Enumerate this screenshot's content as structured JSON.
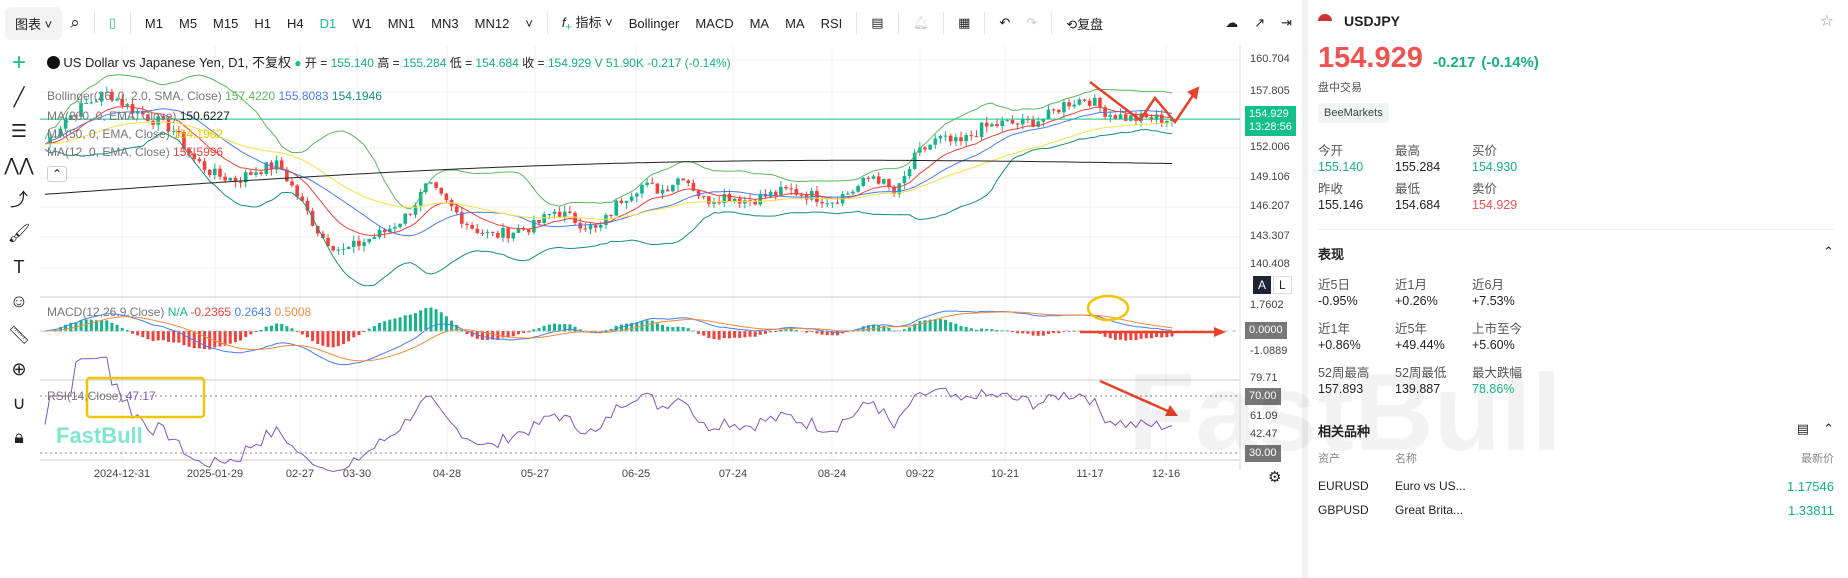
{
  "toolbar": {
    "chart_menu": "图表",
    "timeframes": [
      "M1",
      "M5",
      "M15",
      "H1",
      "H4",
      "D1",
      "W1",
      "MN1",
      "MN3",
      "MN12"
    ],
    "active_timeframe": "D1",
    "indicators_label": "指标",
    "indicator_shortcuts": [
      "Bollinger",
      "MACD",
      "MA",
      "MA",
      "RSI"
    ],
    "replay_label": "复盘"
  },
  "legend": {
    "symbol_title": "US Dollar vs Japanese Yen, D1, 不复权",
    "open_label": "开 =",
    "open": "155.140",
    "high_label": "高 =",
    "high": "155.284",
    "low_label": "低 =",
    "low": "154.684",
    "close_label": "收 =",
    "close": "154.929",
    "volume": "V 51.90K",
    "change": "-0.217 (-0.14%)",
    "bollinger": {
      "label": "Bollinger(26, 0, 2.0, SMA, Close)",
      "upper": "157.4220",
      "mid": "155.8083",
      "lower": "154.1946"
    },
    "ma200": {
      "label": "MA(200, 0, EMA, Close)",
      "value": "150.6227"
    },
    "ma50": {
      "label": "MA(50, 0, EMA, Close)",
      "value": "154.1962"
    },
    "ma12": {
      "label": "MA(12, 0, EMA, Close)",
      "value": "155.5996"
    },
    "macd": {
      "label": "MACD(12,26,9,Close)",
      "na": "N/A",
      "hist": "-0.2365",
      "macd": "0.2643",
      "signal": "0.5008"
    },
    "rsi": {
      "label": "RSI(14,Close)",
      "value": "47.17"
    }
  },
  "price_axis": {
    "labels": [
      "160.704",
      "157.805",
      "152.006",
      "149.106",
      "146.207",
      "143.307",
      "140.408"
    ],
    "current_price": "154.929",
    "countdown": "13:28:56",
    "macd_labels": [
      "1.7602",
      "-1.0889"
    ],
    "macd_zero": "0.0000",
    "rsi_labels": [
      "79.71",
      "61.09",
      "42.47"
    ],
    "rsi_70": "70.00",
    "rsi_30": "30.00",
    "scale_auto": "A",
    "scale_log": "L"
  },
  "colors": {
    "up": "#14b38a",
    "down": "#f0413c",
    "accent": "#14c08a",
    "bb_upper": "#5cb85c",
    "bb_lower": "#138f80",
    "ma12": "#f0413c",
    "ma50": "#f5e042",
    "ma200": "#222222",
    "macd": "#4a7cf5",
    "signal": "#f58a3a",
    "rsi": "#7e57c2",
    "annotation_red": "#e8422a",
    "annotation_yellow": "#f5c400"
  },
  "chart_data": {
    "type": "candlestick",
    "x_ticks": [
      "2024-12-31",
      "2025-01-29",
      "02-27",
      "03-30",
      "04-28",
      "05-27",
      "06-25",
      "07-24",
      "08-24",
      "09-22",
      "10-21",
      "11-17",
      "12-16"
    ],
    "closes": [
      152.5,
      155,
      156.5,
      157.5,
      156,
      155,
      154,
      151,
      149.5,
      149,
      150,
      150.5,
      147,
      143.5,
      142,
      143,
      144,
      145.5,
      148.5,
      146.5,
      144.5,
      143.5,
      144,
      144.5,
      146,
      145,
      144,
      147,
      148.5,
      148,
      149.5,
      147,
      147.5,
      147,
      147.5,
      148,
      147.5,
      147,
      148,
      149.5,
      147.5,
      151.5,
      153,
      152.5,
      154,
      154.5,
      154.5,
      155,
      156.5,
      157,
      155.5,
      155,
      155,
      154.929
    ],
    "ylim": [
      140.408,
      160.704
    ]
  },
  "quote": {
    "symbol": "USDJPY",
    "price": "154.929",
    "change": "-0.217",
    "change_pct": "(-0.14%)",
    "session": "盘中交易",
    "broker": "BeeMarkets",
    "stats": [
      {
        "label": "今开",
        "value": "155.140",
        "color": "#14b37d"
      },
      {
        "label": "最高",
        "value": "155.284",
        "color": "#222"
      },
      {
        "label": "买价",
        "value": "154.930",
        "color": "#14b37d"
      },
      {
        "label": "昨收",
        "value": "155.146",
        "color": "#222"
      },
      {
        "label": "最低",
        "value": "154.684",
        "color": "#222"
      },
      {
        "label": "卖价",
        "value": "154.929",
        "color": "#f1524f"
      }
    ]
  },
  "performance": {
    "title": "表现",
    "items": [
      {
        "label": "近5日",
        "value": "-0.95%"
      },
      {
        "label": "近1月",
        "value": "+0.26%"
      },
      {
        "label": "近6月",
        "value": "+7.53%"
      },
      {
        "label": "近1年",
        "value": "+0.86%"
      },
      {
        "label": "近5年",
        "value": "+49.44%"
      },
      {
        "label": "上市至今",
        "value": "+5.60%"
      },
      {
        "label": "52周最高",
        "value": "157.893"
      },
      {
        "label": "52周最低",
        "value": "139.887"
      },
      {
        "label": "最大跌幅",
        "value": "78.86%"
      }
    ]
  },
  "related": {
    "title": "相关品种",
    "cols": [
      "资产",
      "名称",
      "最新价"
    ],
    "rows": [
      {
        "asset": "EURUSD",
        "name": "Euro vs US...",
        "price": "1.17546"
      },
      {
        "asset": "GBPUSD",
        "name": "Great Brita...",
        "price": "1.33811"
      }
    ]
  },
  "watermark": "FastBull"
}
